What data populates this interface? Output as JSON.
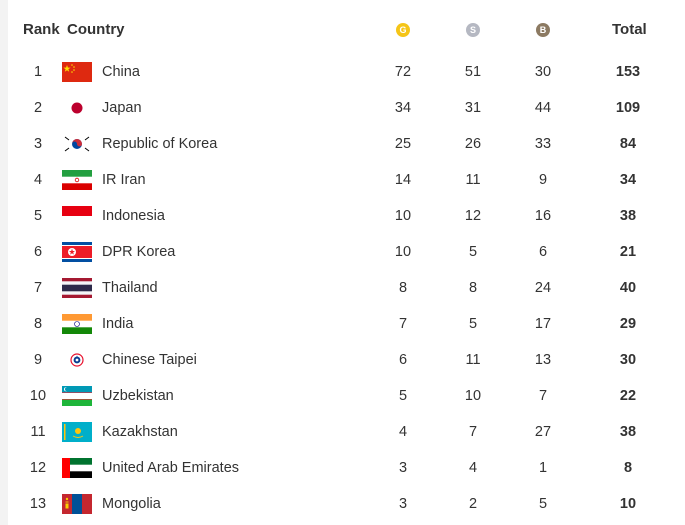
{
  "header": {
    "rank": "Rank",
    "country": "Country",
    "gold": "G",
    "silver": "S",
    "bronze": "B",
    "total": "Total"
  },
  "colors": {
    "gold": "#f5c518",
    "silver": "#b5b8c2",
    "bronze": "#8c7a62"
  },
  "rows": [
    {
      "rank": "1",
      "country": "China",
      "gold": "72",
      "silver": "51",
      "bronze": "30",
      "total": "153",
      "flag": "china-flag-icon"
    },
    {
      "rank": "2",
      "country": "Japan",
      "gold": "34",
      "silver": "31",
      "bronze": "44",
      "total": "109",
      "flag": "japan-flag-icon"
    },
    {
      "rank": "3",
      "country": "Republic of Korea",
      "gold": "25",
      "silver": "26",
      "bronze": "33",
      "total": "84",
      "flag": "korea-flag-icon"
    },
    {
      "rank": "4",
      "country": "IR Iran",
      "gold": "14",
      "silver": "11",
      "bronze": "9",
      "total": "34",
      "flag": "iran-flag-icon"
    },
    {
      "rank": "5",
      "country": "Indonesia",
      "gold": "10",
      "silver": "12",
      "bronze": "16",
      "total": "38",
      "flag": "indonesia-flag-icon"
    },
    {
      "rank": "6",
      "country": "DPR Korea",
      "gold": "10",
      "silver": "5",
      "bronze": "6",
      "total": "21",
      "flag": "dpr-korea-flag-icon"
    },
    {
      "rank": "7",
      "country": "Thailand",
      "gold": "8",
      "silver": "8",
      "bronze": "24",
      "total": "40",
      "flag": "thailand-flag-icon"
    },
    {
      "rank": "8",
      "country": "India",
      "gold": "7",
      "silver": "5",
      "bronze": "17",
      "total": "29",
      "flag": "india-flag-icon"
    },
    {
      "rank": "9",
      "country": "Chinese Taipei",
      "gold": "6",
      "silver": "11",
      "bronze": "13",
      "total": "30",
      "flag": "chinese-taipei-flag-icon"
    },
    {
      "rank": "10",
      "country": "Uzbekistan",
      "gold": "5",
      "silver": "10",
      "bronze": "7",
      "total": "22",
      "flag": "uzbekistan-flag-icon"
    },
    {
      "rank": "11",
      "country": "Kazakhstan",
      "gold": "4",
      "silver": "7",
      "bronze": "27",
      "total": "38",
      "flag": "kazakhstan-flag-icon"
    },
    {
      "rank": "12",
      "country": "United Arab Emirates",
      "gold": "3",
      "silver": "4",
      "bronze": "1",
      "total": "8",
      "flag": "uae-flag-icon"
    },
    {
      "rank": "13",
      "country": "Mongolia",
      "gold": "3",
      "silver": "2",
      "bronze": "5",
      "total": "10",
      "flag": "mongolia-flag-icon"
    }
  ]
}
